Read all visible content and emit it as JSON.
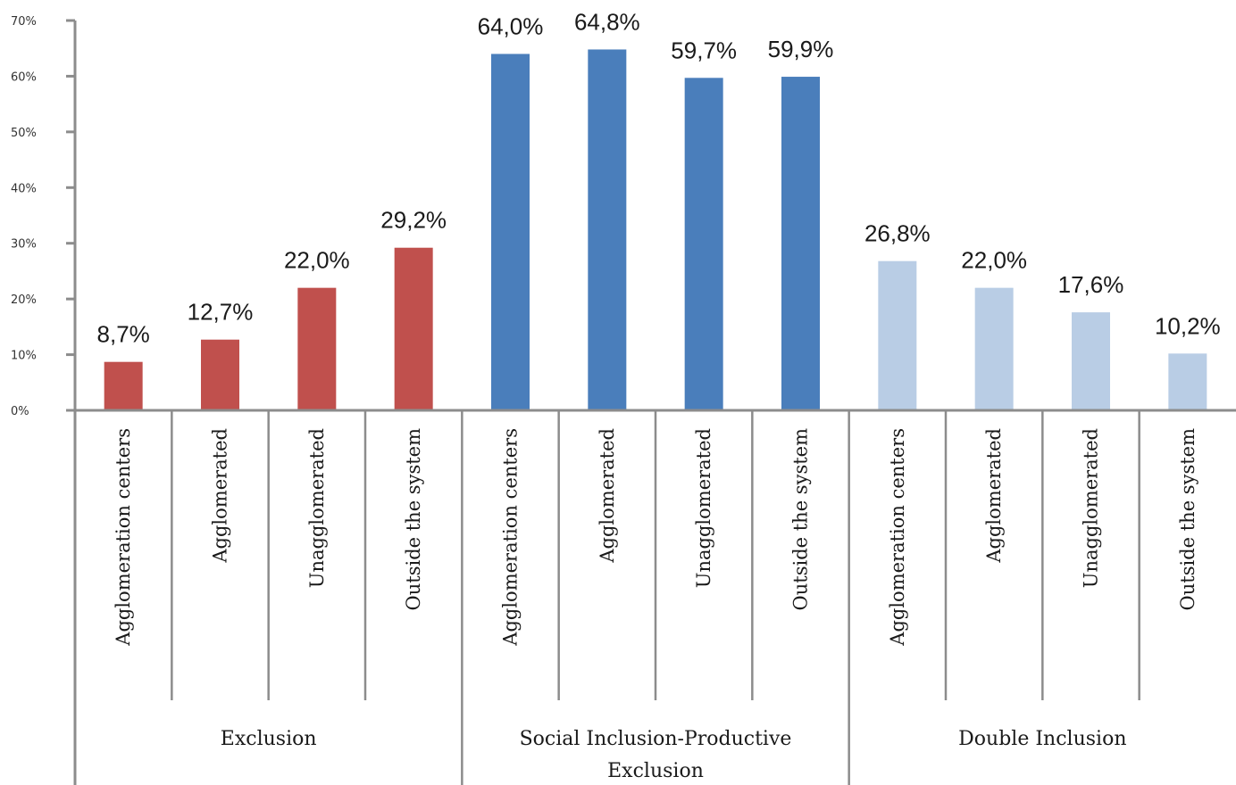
{
  "chart_data": {
    "type": "bar",
    "ylim": [
      0,
      70
    ],
    "y_ticks": [
      "0%",
      "10%",
      "20%",
      "30%",
      "40%",
      "50%",
      "60%",
      "70%"
    ],
    "categories": [
      "Agglomeration centers",
      "Agglomerated",
      "Unagglomerated",
      "Outside the system",
      "Agglomeration centers",
      "Agglomerated",
      "Unagglomerated",
      "Outside the system",
      "Agglomeration centers",
      "Agglomerated",
      "Unagglomerated",
      "Outside the system"
    ],
    "values": [
      8.7,
      12.7,
      22.0,
      29.2,
      64.0,
      64.8,
      59.7,
      59.9,
      26.8,
      22.0,
      17.6,
      10.2
    ],
    "value_labels": [
      "8,7%",
      "12,7%",
      "22,0%",
      "29,2%",
      "64,0%",
      "64,8%",
      "59,7%",
      "59,9%",
      "26,8%",
      "22,0%",
      "17,6%",
      "10,2%"
    ],
    "groups": [
      {
        "label": "Exclusion",
        "label_lines": [
          "Exclusion"
        ],
        "color": "#c0504d",
        "count": 4
      },
      {
        "label": "Social Inclusion-Productive Exclusion",
        "label_lines": [
          "Social Inclusion-Productive",
          "Exclusion"
        ],
        "color": "#4a7ebb",
        "count": 4
      },
      {
        "label": "Double Inclusion",
        "label_lines": [
          "Double Inclusion"
        ],
        "color": "#b9cde5",
        "count": 4
      }
    ],
    "grid": false,
    "legend": "none"
  }
}
